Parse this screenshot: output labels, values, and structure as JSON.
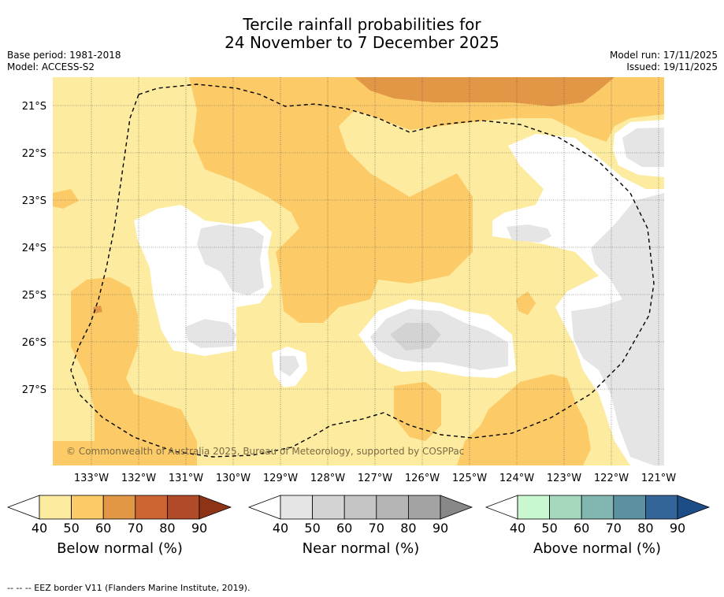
{
  "title_line1": "Tercile rainfall probabilities for",
  "title_line2": "24 November to 7 December 2025",
  "base_period": "Base period: 1981-2018",
  "model": "Model: ACCESS-S2",
  "model_run": "Model run: 17/11/2025",
  "issued": "Issued: 19/11/2025",
  "map": {
    "lat_labels": [
      "21°S",
      "22°S",
      "23°S",
      "24°S",
      "25°S",
      "26°S",
      "27°S"
    ],
    "lon_labels": [
      "133°W",
      "132°W",
      "131°W",
      "130°W",
      "129°W",
      "128°W",
      "127°W",
      "126°W",
      "125°W",
      "124°W",
      "123°W",
      "122°W",
      "121°W"
    ],
    "copyright": "© Commonwealth of Australia 2025, Bureau of Meteorology, supported by COSPPac",
    "colors": {
      "below_40": "#fdeba0",
      "below_50": "#fccb67",
      "below_60": "#e29747",
      "near_40": "#e5e5e5",
      "near_50": "#d3d3d3",
      "white": "#ffffff"
    }
  },
  "colorbars": [
    {
      "name": "Below normal (%)",
      "ticks": [
        "40",
        "50",
        "60",
        "70",
        "80",
        "90"
      ],
      "colors": [
        "#fdeba0",
        "#fccb67",
        "#e29747",
        "#cd6433",
        "#b04a28",
        "#8f3317"
      ]
    },
    {
      "name": "Near normal (%)",
      "ticks": [
        "40",
        "50",
        "60",
        "70",
        "80",
        "90"
      ],
      "colors": [
        "#e5e5e5",
        "#d3d3d3",
        "#c5c5c5",
        "#b5b5b5",
        "#a3a3a3",
        "#888888"
      ]
    },
    {
      "name": "Above normal (%)",
      "ticks": [
        "40",
        "50",
        "60",
        "70",
        "80",
        "90"
      ],
      "colors": [
        "#c8f7d0",
        "#a5d9be",
        "#82b6b1",
        "#5b91a1",
        "#346598",
        "#1d4d87"
      ]
    }
  ],
  "footnote": "--  --  -- EEZ border V11 (Flanders Marine Institute, 2019)."
}
